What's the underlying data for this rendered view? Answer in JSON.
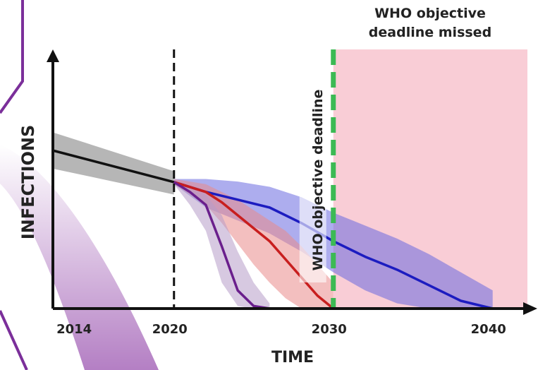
{
  "chart_data": {
    "type": "line",
    "xlabel": "TIME",
    "ylabel": "INFECTIONS",
    "xlim": [
      2012.4,
      2042.8
    ],
    "ylim": [
      0,
      100
    ],
    "xticks": [
      2014,
      2020,
      2030,
      2040
    ],
    "vlines": [
      {
        "x": 2020,
        "color": "#111111"
      },
      {
        "x": 2030,
        "color": "#3cba54",
        "label": "WHO objective deadline"
      }
    ],
    "region": {
      "x0": 2030,
      "x1": 2042.8,
      "color": "#f9cdd6",
      "label": "WHO objective deadline missed"
    },
    "series": [
      {
        "color": "#111111",
        "band_color": "#7a7a7a",
        "x": [
          2012.4,
          2020
        ],
        "values": [
          61,
          48.8
        ],
        "lower": [
          54,
          44
        ],
        "upper": [
          68,
          53
        ]
      },
      {
        "color": "#1c1cc0",
        "band_color": "#6a6ae0",
        "x": [
          2020,
          2022,
          2024,
          2026,
          2028,
          2030,
          2032,
          2034,
          2036,
          2038,
          2040
        ],
        "values": [
          48.8,
          45,
          42,
          39,
          33,
          26,
          20,
          15,
          9,
          3,
          0
        ],
        "lower": [
          48,
          39,
          34,
          29,
          22,
          14,
          7,
          2,
          0,
          0,
          0
        ],
        "upper": [
          50,
          50,
          49,
          47,
          43,
          37,
          32,
          27,
          21,
          14,
          7
        ]
      },
      {
        "color": "#c81e1e",
        "band_color": "#e98a8a",
        "x": [
          2020,
          2022,
          2023,
          2024,
          2025,
          2026,
          2027,
          2028,
          2029,
          2030
        ],
        "values": [
          48.8,
          45,
          41,
          36,
          31,
          26,
          19,
          12,
          5,
          0
        ],
        "lower": [
          48,
          40,
          33,
          25,
          17,
          10,
          4,
          0,
          0,
          0
        ],
        "upper": [
          50,
          48,
          45,
          42,
          38,
          34,
          30,
          24,
          17,
          10
        ]
      },
      {
        "color": "#6a1f8c",
        "band_color": "#b79cc9",
        "x": [
          2020,
          2021,
          2022,
          2023,
          2024,
          2025,
          2026
        ],
        "values": [
          48.8,
          45,
          40,
          24,
          7,
          1,
          0
        ],
        "lower": [
          48,
          40,
          30,
          10,
          1,
          0,
          0
        ],
        "upper": [
          50,
          46,
          44,
          36,
          22,
          10,
          2
        ]
      }
    ]
  }
}
